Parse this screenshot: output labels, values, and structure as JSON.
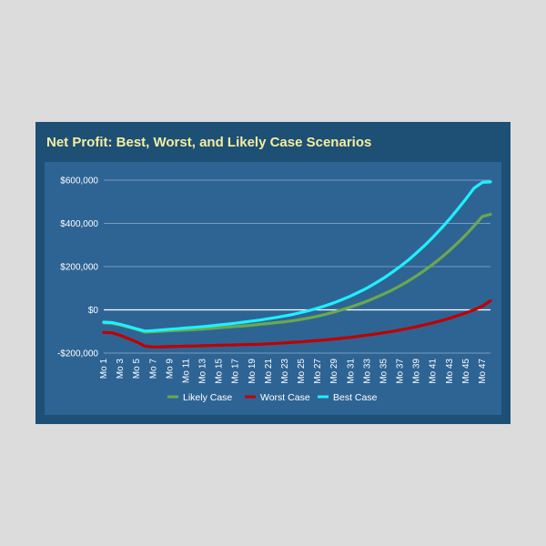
{
  "chart_data": {
    "type": "line",
    "title": "Net Profit: Best, Worst, and Likely Case Scenarios",
    "xlabel": "",
    "ylabel": "",
    "x_tick_labels": [
      "Mo 1",
      "Mo 3",
      "Mo 5",
      "Mo 7",
      "Mo 9",
      "Mo 11",
      "Mo 13",
      "Mo 15",
      "Mo 17",
      "Mo 19",
      "Mo 21",
      "Mo 23",
      "Mo 25",
      "Mo 27",
      "Mo 29",
      "Mo 31",
      "Mo 33",
      "Mo 35",
      "Mo 37",
      "Mo 39",
      "Mo 41",
      "Mo 43",
      "Mo 45",
      "Mo 47"
    ],
    "y_tick_labels": [
      "-$200,000",
      "$0",
      "$200,000",
      "$400,000",
      "$600,000"
    ],
    "y_ticks": [
      -200000,
      0,
      200000,
      400000,
      600000
    ],
    "ylim": [
      -200000,
      600000
    ],
    "grid": true,
    "legend_position": "bottom",
    "colors": {
      "likely": "#6aa84f",
      "worst": "#c00000",
      "best": "#1ff0ff"
    },
    "series": [
      {
        "name": "Likely Case",
        "key": "likely",
        "x": [
          1,
          2,
          3,
          4,
          5,
          6,
          7,
          8,
          9,
          10,
          11,
          12,
          13,
          14,
          15,
          16,
          17,
          18,
          19,
          20,
          21,
          22,
          23,
          24,
          25,
          26,
          27,
          28,
          29,
          30,
          31,
          32,
          33,
          34,
          35,
          36,
          37,
          38,
          39,
          40,
          41,
          42,
          43,
          44,
          45,
          46,
          47,
          48
        ],
        "values": [
          -60000,
          -62000,
          -70000,
          -80000,
          -90000,
          -103000,
          -101000,
          -99000,
          -97000,
          -95000,
          -93000,
          -91000,
          -89000,
          -86000,
          -83000,
          -80000,
          -77000,
          -74000,
          -71000,
          -67000,
          -63000,
          -59000,
          -55000,
          -50000,
          -44000,
          -37000,
          -29000,
          -20000,
          -10000,
          1000,
          13000,
          26000,
          40000,
          56000,
          73000,
          91000,
          111000,
          133000,
          157000,
          183000,
          211000,
          241000,
          274000,
          309000,
          347000,
          388000,
          432000,
          442000
        ]
      },
      {
        "name": "Worst Case",
        "key": "worst",
        "x": [
          1,
          2,
          3,
          4,
          5,
          6,
          7,
          8,
          9,
          10,
          11,
          12,
          13,
          14,
          15,
          16,
          17,
          18,
          19,
          20,
          21,
          22,
          23,
          24,
          25,
          26,
          27,
          28,
          29,
          30,
          31,
          32,
          33,
          34,
          35,
          36,
          37,
          38,
          39,
          40,
          41,
          42,
          43,
          44,
          45,
          46,
          47,
          48
        ],
        "values": [
          -105000,
          -106000,
          -118000,
          -133000,
          -148000,
          -168000,
          -172000,
          -171000,
          -170000,
          -169000,
          -168000,
          -167000,
          -166000,
          -165000,
          -164000,
          -163000,
          -162000,
          -161000,
          -160000,
          -159000,
          -157000,
          -155000,
          -153000,
          -150000,
          -148000,
          -145000,
          -142000,
          -139000,
          -135000,
          -131000,
          -127000,
          -122000,
          -117000,
          -112000,
          -106000,
          -100000,
          -93000,
          -86000,
          -78000,
          -69000,
          -60000,
          -50000,
          -39000,
          -27000,
          -14000,
          0,
          17000,
          42000
        ]
      },
      {
        "name": "Best Case",
        "key": "best",
        "x": [
          1,
          2,
          3,
          4,
          5,
          6,
          7,
          8,
          9,
          10,
          11,
          12,
          13,
          14,
          15,
          16,
          17,
          18,
          19,
          20,
          21,
          22,
          23,
          24,
          25,
          26,
          27,
          28,
          29,
          30,
          31,
          32,
          33,
          34,
          35,
          36,
          37,
          38,
          39,
          40,
          41,
          42,
          43,
          44,
          45,
          46,
          47,
          48
        ],
        "values": [
          -57000,
          -59000,
          -67000,
          -77000,
          -88000,
          -98000,
          -96000,
          -93000,
          -90000,
          -87000,
          -84000,
          -81000,
          -78000,
          -74000,
          -70000,
          -66000,
          -62000,
          -57000,
          -52000,
          -47000,
          -41000,
          -35000,
          -28000,
          -21000,
          -12000,
          -3000,
          8000,
          20000,
          33000,
          48000,
          64000,
          82000,
          101000,
          123000,
          146000,
          172000,
          200000,
          230000,
          263000,
          298000,
          336000,
          376000,
          419000,
          465000,
          513000,
          563000,
          590000,
          592000
        ]
      }
    ]
  }
}
